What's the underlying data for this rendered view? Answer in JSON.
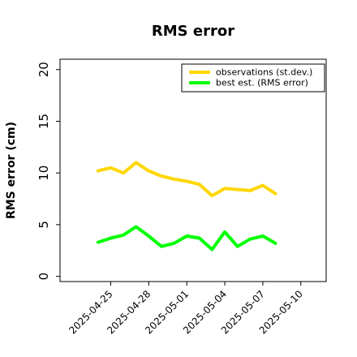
{
  "chart_data": {
    "type": "line",
    "title": "RMS error",
    "xlabel": "",
    "ylabel": "RMS error (cm)",
    "ylim": [
      -0.5,
      21
    ],
    "xlim": [
      "2025-04-21",
      "2025-05-12"
    ],
    "y_ticks": [
      "0",
      "5",
      "10",
      "15",
      "20"
    ],
    "x_ticks": [
      {
        "label": "2025-04-25",
        "color": "#000000"
      },
      {
        "label": "2025-04-28",
        "color": "#000000"
      },
      {
        "label": "2025-05-01",
        "color": "#228B22"
      },
      {
        "label": "2025-05-04",
        "color": "#000000"
      },
      {
        "label": "2025-05-07",
        "color": "#000000"
      },
      {
        "label": "2025-05-10",
        "color": "#000000"
      }
    ],
    "grid": false,
    "legend_position": "top-right",
    "x": [
      "2025-04-24",
      "2025-04-25",
      "2025-04-26",
      "2025-04-27",
      "2025-04-28",
      "2025-04-29",
      "2025-04-30",
      "2025-05-01",
      "2025-05-02",
      "2025-05-03",
      "2025-05-04",
      "2025-05-05",
      "2025-05-06",
      "2025-05-07",
      "2025-05-08"
    ],
    "series": [
      {
        "name": "observations (st.dev.)",
        "color": "#FFD700",
        "values": [
          10.2,
          10.5,
          10.0,
          11.0,
          10.2,
          9.7,
          9.4,
          9.2,
          8.9,
          7.8,
          8.5,
          8.4,
          8.3,
          8.8,
          8.0
        ]
      },
      {
        "name": "best est. (RMS error)",
        "color": "#00FF00",
        "values": [
          3.3,
          3.7,
          4.0,
          4.8,
          3.9,
          2.9,
          3.2,
          3.9,
          3.7,
          2.6,
          4.3,
          2.9,
          3.6,
          3.9,
          3.2
        ]
      }
    ]
  }
}
